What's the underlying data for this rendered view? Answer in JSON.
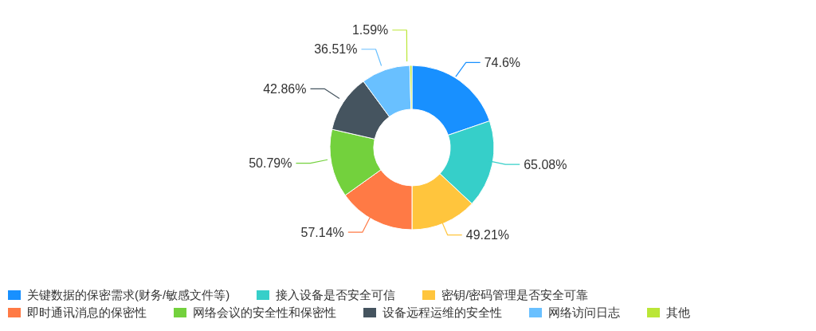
{
  "chart_data": {
    "type": "donut",
    "categories": [
      "关键数据的保密需求(财务/敏感文件等)",
      "接入设备是否安全可信",
      "密钥/密码管理是否安全可靠",
      "即时通讯消息的保密性",
      "网络会议的安全性和保密性",
      "设备远程运维的安全性",
      "网络访问日志",
      "其他"
    ],
    "values": [
      74.6,
      65.08,
      49.21,
      57.14,
      50.79,
      42.86,
      36.51,
      1.59
    ],
    "value_labels": [
      "74.6%",
      "65.08%",
      "49.21%",
      "57.14%",
      "50.79%",
      "42.86%",
      "36.51%",
      "1.59%"
    ],
    "colors": [
      "#1890ff",
      "#36cfc9",
      "#ffc53d",
      "#ff7a45",
      "#73d13d",
      "#45545f",
      "#69c0ff",
      "#bae637"
    ],
    "legend": "bottom"
  }
}
